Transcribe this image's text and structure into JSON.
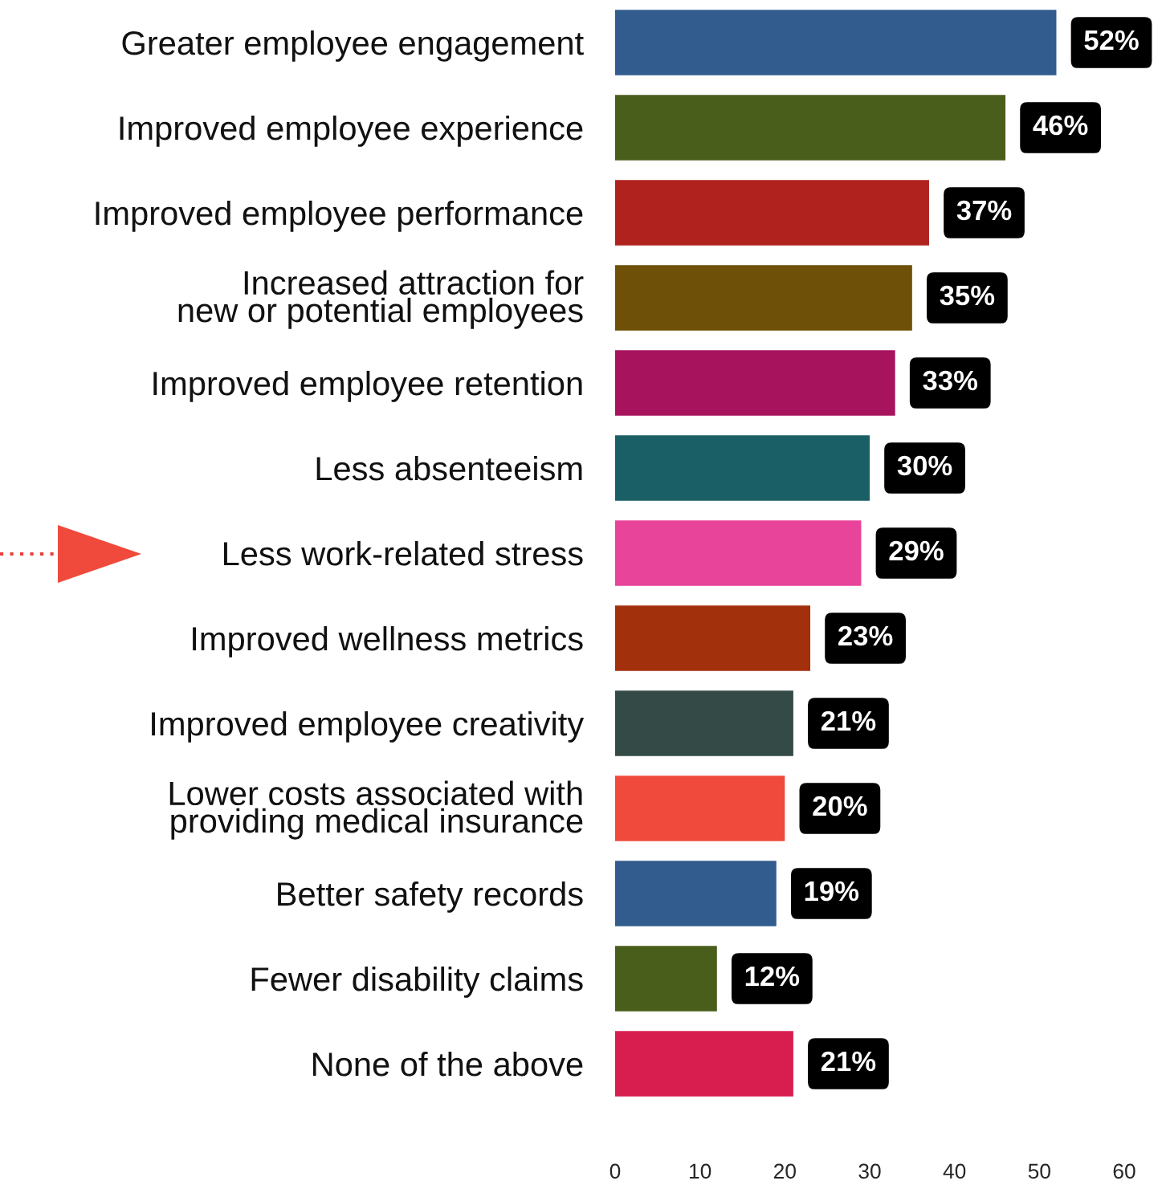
{
  "chart_data": {
    "type": "bar",
    "orientation": "horizontal",
    "categories": [
      "Greater employee engagement",
      "Improved employee experience",
      "Improved employee performance",
      "Increased attraction for\nnew or potential employees",
      "Improved employee retention",
      "Less absenteeism",
      "Less work-related stress",
      "Improved wellness metrics",
      "Improved employee creativity",
      "Lower costs associated with\nproviding medical insurance",
      "Better safety records",
      "Fewer disability claims",
      "None of the above"
    ],
    "values": [
      52,
      46,
      37,
      35,
      33,
      30,
      29,
      23,
      21,
      20,
      19,
      12,
      21
    ],
    "value_labels": [
      "52%",
      "46%",
      "37%",
      "35%",
      "33%",
      "30%",
      "29%",
      "23%",
      "21%",
      "20%",
      "19%",
      "12%",
      "21%"
    ],
    "colors": [
      "#335c8e",
      "#4a5e1c",
      "#b0221d",
      "#6e5009",
      "#a8135e",
      "#1a5f66",
      "#e8449a",
      "#a3300d",
      "#344a46",
      "#ef4a3c",
      "#335c8e",
      "#4a5e1c",
      "#d81e4f"
    ],
    "xlim": [
      0,
      60
    ],
    "xticks": [
      0,
      10,
      20,
      30,
      40,
      50,
      60
    ],
    "grid": false,
    "legend": false
  }
}
